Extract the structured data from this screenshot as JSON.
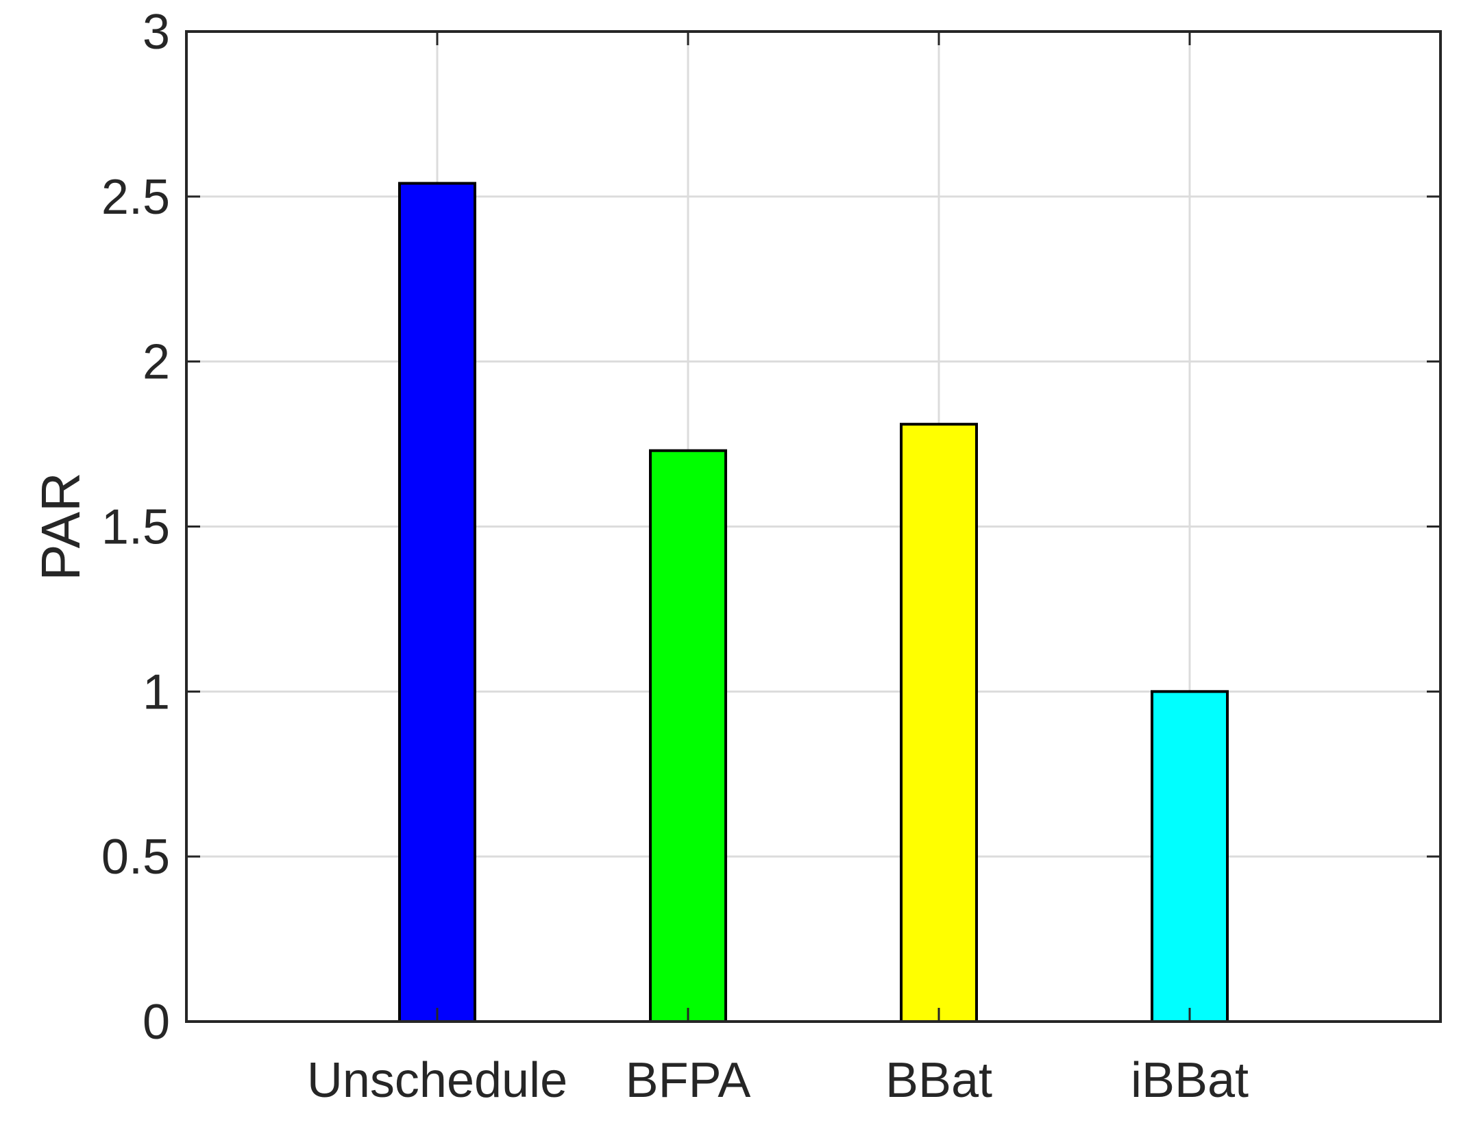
{
  "chart_data": {
    "type": "bar",
    "categories": [
      "Unschedule",
      "BFPA",
      "BBat",
      "iBBat"
    ],
    "values": [
      2.54,
      1.73,
      1.81,
      1.0
    ],
    "colors": [
      "#0000ff",
      "#00ff00",
      "#ffff00",
      "#00ffff"
    ],
    "ylabel": "PAR",
    "xlabel": "",
    "title": "",
    "ylim": [
      0,
      3
    ],
    "yticks": [
      "0",
      "0.5",
      "1",
      "1.5",
      "2",
      "2.5",
      "3"
    ],
    "xlim": [
      0,
      5
    ],
    "grid": true
  }
}
